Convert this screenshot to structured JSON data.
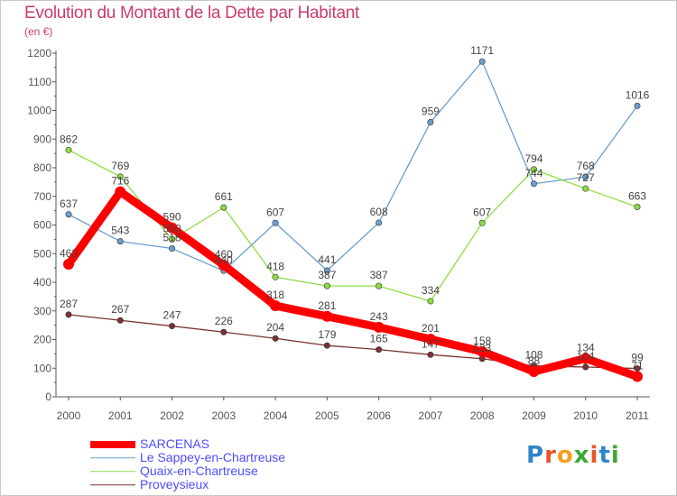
{
  "title": "Evolution du Montant de la Dette par Habitant",
  "unit": "(en €)",
  "logo": {
    "text": "Proxiti",
    "letter_colors": [
      "#2e86c8",
      "#e8532b",
      "#f2a01f",
      "#3aa935",
      "#e8532b",
      "#2e86c8",
      "#3aa935"
    ]
  },
  "chart_data": {
    "type": "line",
    "title": "Evolution du Montant de la Dette par Habitant",
    "ylabel": "(en €)",
    "xlabel": "",
    "x": [
      "2000",
      "2001",
      "2002",
      "2003",
      "2004",
      "2005",
      "2006",
      "2007",
      "2008",
      "2009",
      "2010",
      "2011"
    ],
    "ylim": [
      0,
      1200
    ],
    "yticks": [
      "0",
      "100",
      "200",
      "300",
      "400",
      "500",
      "600",
      "700",
      "800",
      "900",
      "1000",
      "1100",
      "1200"
    ],
    "grid": false,
    "legend_position": "bottom-left",
    "series": [
      {
        "name": "SARCENAS",
        "color": "#ff0000",
        "values": [
          463,
          716,
          590,
          460,
          318,
          281,
          243,
          201,
          158,
          88,
          134,
          71
        ],
        "labels": [
          "463",
          "716",
          "590",
          "460",
          "318",
          "281",
          "243",
          "201",
          "158",
          "88",
          "134",
          "71"
        ]
      },
      {
        "name": "Le Sappey-en-Chartreuse",
        "color": "#6a9fd0",
        "values": [
          637,
          543,
          518,
          440,
          607,
          441,
          608,
          959,
          1171,
          744,
          768,
          1016
        ],
        "labels": [
          "637",
          "543",
          "518",
          "440",
          "607",
          "441",
          "608",
          "959",
          "1171",
          "744",
          "768",
          "1016"
        ]
      },
      {
        "name": "Quaix-en-Chartreuse",
        "color": "#8edc45",
        "values": [
          862,
          769,
          550,
          661,
          418,
          387,
          387,
          334,
          607,
          794,
          727,
          663
        ],
        "labels": [
          "862",
          "769",
          "550",
          "661",
          "418",
          "387",
          "387",
          "334",
          "607",
          "794",
          "727",
          "663"
        ]
      },
      {
        "name": "Proveysieux",
        "color": "#7a3232",
        "values": [
          287,
          267,
          247,
          226,
          204,
          179,
          165,
          147,
          133,
          108,
          104,
          99
        ],
        "labels": [
          "287",
          "267",
          "247",
          "226",
          "204",
          "179",
          "165",
          "147",
          "133",
          "108",
          "104",
          "99"
        ]
      }
    ]
  }
}
